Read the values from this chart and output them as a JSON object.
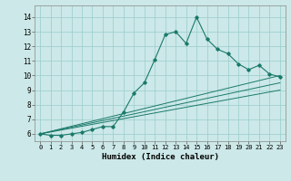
{
  "xlabel": "Humidex (Indice chaleur)",
  "bg_color": "#cce8e8",
  "line_color": "#1a7a6a",
  "grid_color": "#99cccc",
  "xlim": [
    -0.5,
    23.5
  ],
  "ylim": [
    5.5,
    14.8
  ],
  "xticks": [
    0,
    1,
    2,
    3,
    4,
    5,
    6,
    7,
    8,
    9,
    10,
    11,
    12,
    13,
    14,
    15,
    16,
    17,
    18,
    19,
    20,
    21,
    22,
    23
  ],
  "yticks": [
    6,
    7,
    8,
    9,
    10,
    11,
    12,
    13,
    14
  ],
  "line1_x": [
    0,
    1,
    2,
    3,
    4,
    5,
    6,
    7,
    8,
    9,
    10,
    11,
    12,
    13,
    14,
    15,
    16,
    17,
    18,
    19,
    20,
    21,
    22,
    23
  ],
  "line1_y": [
    6.0,
    5.9,
    5.9,
    6.0,
    6.1,
    6.3,
    6.5,
    6.5,
    7.5,
    8.8,
    9.5,
    11.1,
    12.8,
    13.0,
    12.2,
    14.0,
    12.5,
    11.8,
    11.5,
    10.8,
    10.4,
    10.7,
    10.1,
    9.9
  ],
  "line2_x": [
    0,
    23
  ],
  "line2_y": [
    6.0,
    10.0
  ],
  "line3_x": [
    0,
    23
  ],
  "line3_y": [
    6.0,
    9.5
  ],
  "line4_x": [
    0,
    23
  ],
  "line4_y": [
    6.0,
    9.0
  ]
}
